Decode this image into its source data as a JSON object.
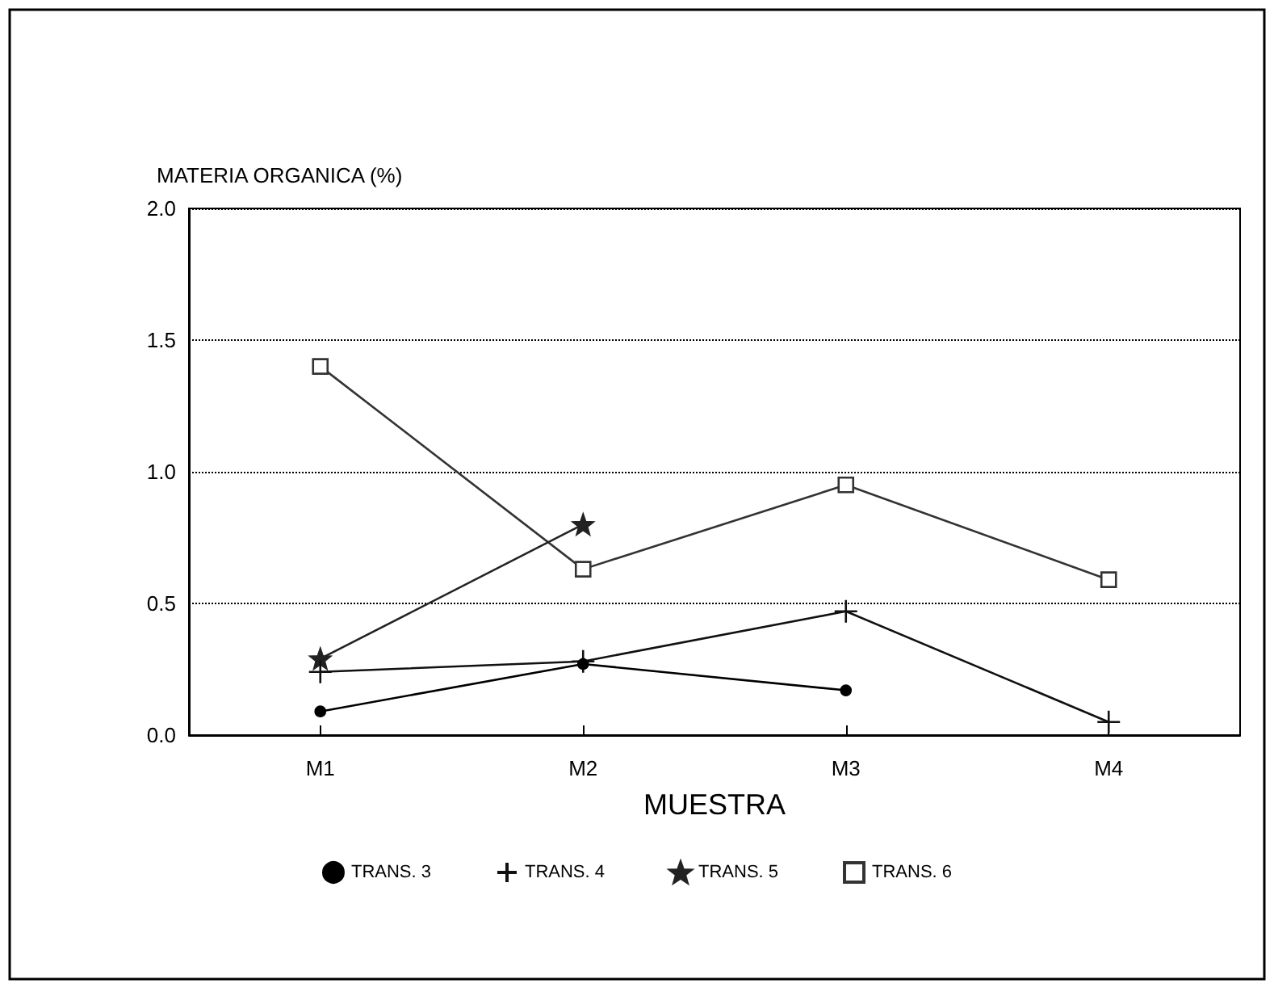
{
  "chart_data": {
    "type": "line",
    "ylabel": "MATERIA ORGANICA (%)",
    "xlabel": "MUESTRA",
    "categories": [
      "M1",
      "M2",
      "M3",
      "M4"
    ],
    "series": [
      {
        "name": "TRANS. 3",
        "color": "#000000",
        "marker": "circle",
        "values": [
          0.09,
          0.27,
          0.17,
          null
        ]
      },
      {
        "name": "TRANS. 4",
        "color": "#111111",
        "marker": "cross",
        "values": [
          0.24,
          0.28,
          0.47,
          0.05
        ]
      },
      {
        "name": "TRANS. 5",
        "color": "#222222",
        "marker": "star",
        "values": [
          0.29,
          0.8,
          null,
          null
        ]
      },
      {
        "name": "TRANS. 6",
        "color": "#333333",
        "marker": "square",
        "values": [
          1.4,
          0.63,
          0.95,
          0.59
        ]
      }
    ],
    "ylim": [
      0,
      2.0
    ],
    "yticks": [
      {
        "value": 0,
        "label": "0.0"
      },
      {
        "value": 0.5,
        "label": "0.5"
      },
      {
        "value": 1.0,
        "label": "1.0"
      },
      {
        "value": 1.5,
        "label": "1.5"
      },
      {
        "value": 2.0,
        "label": "2.0"
      }
    ],
    "grid": "y",
    "legend": "bottom",
    "line_style": "solid"
  }
}
